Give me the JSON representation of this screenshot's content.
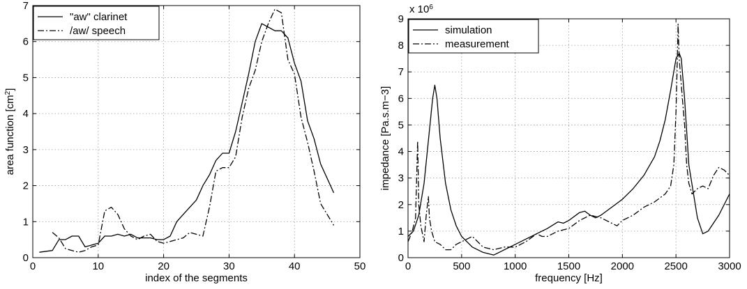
{
  "chart_data": [
    {
      "type": "line",
      "xlabel": "index of the segments",
      "ylabel": "area function [cm",
      "ylabel_sup": "2",
      "ylabel_close": "]",
      "xlim": [
        0,
        50
      ],
      "ylim": [
        0,
        7
      ],
      "xticks": [
        0,
        10,
        20,
        30,
        40,
        50
      ],
      "yticks": [
        0,
        1,
        2,
        3,
        4,
        5,
        6,
        7
      ],
      "grid": true,
      "legend_position": "top-left",
      "series": [
        {
          "name": "\"aw\" clarinet",
          "style": "solid",
          "x": [
            1,
            3,
            4,
            5,
            6,
            7,
            8,
            9,
            10,
            11,
            12,
            13,
            14,
            15,
            16,
            17,
            18,
            19,
            20,
            21,
            22,
            23,
            24,
            25,
            26,
            27,
            28,
            29,
            30,
            31,
            32,
            33,
            34,
            35,
            36,
            37,
            38,
            39,
            40,
            41,
            42,
            43,
            44,
            45,
            46
          ],
          "y": [
            0.15,
            0.2,
            0.5,
            0.5,
            0.6,
            0.6,
            0.3,
            0.35,
            0.4,
            0.6,
            0.6,
            0.65,
            0.6,
            0.65,
            0.55,
            0.55,
            0.55,
            0.5,
            0.5,
            0.6,
            1.0,
            1.2,
            1.4,
            1.6,
            2.0,
            2.3,
            2.7,
            2.9,
            2.9,
            3.5,
            4.3,
            5.1,
            6.0,
            6.5,
            6.4,
            6.3,
            6.3,
            6.1,
            5.4,
            4.9,
            3.8,
            3.3,
            2.6,
            2.2,
            1.8
          ]
        },
        {
          "name": "/aw/ speech",
          "style": "dashdot",
          "x": [
            3,
            4,
            5,
            6,
            7,
            8,
            9,
            10,
            11,
            12,
            13,
            14,
            15,
            16,
            17,
            18,
            19,
            20,
            21,
            22,
            23,
            24,
            25,
            26,
            27,
            28,
            29,
            30,
            31,
            32,
            33,
            34,
            35,
            36,
            37,
            38,
            39,
            40,
            41,
            42,
            43,
            44,
            45,
            46
          ],
          "y": [
            0.7,
            0.55,
            0.25,
            0.2,
            0.15,
            0.2,
            0.3,
            0.35,
            1.3,
            1.4,
            1.2,
            0.8,
            0.6,
            0.5,
            0.6,
            0.65,
            0.45,
            0.4,
            0.45,
            0.5,
            0.55,
            0.7,
            0.65,
            0.6,
            1.4,
            2.4,
            2.5,
            2.5,
            2.8,
            3.9,
            4.7,
            5.2,
            6.0,
            6.5,
            6.9,
            6.8,
            5.5,
            5.1,
            3.9,
            3.2,
            2.4,
            1.5,
            1.2,
            0.9
          ]
        }
      ]
    },
    {
      "type": "line",
      "xlabel": "frequency [Hz]",
      "ylabel": "impedance [Pa.s.m−3]",
      "scale_note_base": "x 10",
      "scale_note_exp": "6",
      "xlim": [
        0,
        3000
      ],
      "ylim": [
        0,
        9
      ],
      "xticks": [
        0,
        500,
        1000,
        1500,
        2000,
        2500,
        3000
      ],
      "yticks": [
        0,
        1,
        2,
        3,
        4,
        5,
        6,
        7,
        8,
        9
      ],
      "grid": true,
      "legend_position": "top-left",
      "series": [
        {
          "name": "simulation",
          "style": "solid",
          "x": [
            0,
            50,
            100,
            150,
            200,
            230,
            250,
            270,
            300,
            350,
            400,
            450,
            500,
            600,
            700,
            800,
            850,
            900,
            1000,
            1100,
            1200,
            1300,
            1400,
            1450,
            1500,
            1600,
            1650,
            1700,
            1750,
            1800,
            1900,
            2000,
            2100,
            2200,
            2300,
            2350,
            2400,
            2450,
            2500,
            2530,
            2550,
            2580,
            2620,
            2700,
            2750,
            2800,
            2900,
            3000
          ],
          "y": [
            0.8,
            1.0,
            1.6,
            2.8,
            4.8,
            6.0,
            6.5,
            6.0,
            4.5,
            2.8,
            1.8,
            1.2,
            0.8,
            0.4,
            0.2,
            0.1,
            0.2,
            0.3,
            0.5,
            0.7,
            0.9,
            1.1,
            1.35,
            1.3,
            1.4,
            1.7,
            1.75,
            1.6,
            1.5,
            1.6,
            1.9,
            2.2,
            2.6,
            3.1,
            3.8,
            4.4,
            5.2,
            6.3,
            7.5,
            7.7,
            7.5,
            6.0,
            3.5,
            1.5,
            0.9,
            1.0,
            1.6,
            2.4
          ]
        },
        {
          "name": "measurement",
          "style": "dashdot",
          "x": [
            0,
            40,
            70,
            90,
            100,
            120,
            150,
            170,
            190,
            200,
            220,
            250,
            300,
            350,
            400,
            450,
            500,
            550,
            600,
            700,
            800,
            900,
            1000,
            1100,
            1200,
            1250,
            1300,
            1400,
            1500,
            1600,
            1700,
            1800,
            1900,
            1950,
            2000,
            2100,
            2200,
            2300,
            2400,
            2450,
            2480,
            2500,
            2510,
            2520,
            2530,
            2550,
            2580,
            2600,
            2620,
            2650,
            2700,
            2750,
            2800,
            2850,
            2900,
            2950,
            3000
          ],
          "y": [
            0.6,
            1.0,
            1.5,
            4.4,
            2.0,
            1.2,
            0.6,
            1.6,
            2.3,
            1.5,
            1.0,
            0.6,
            0.5,
            0.3,
            0.3,
            0.5,
            0.6,
            0.7,
            0.8,
            0.4,
            0.3,
            0.4,
            0.4,
            0.6,
            0.9,
            0.8,
            0.8,
            1.0,
            1.1,
            1.4,
            1.6,
            1.5,
            1.3,
            1.2,
            1.4,
            1.6,
            1.9,
            2.1,
            2.4,
            2.7,
            3.5,
            5.5,
            7.0,
            8.8,
            7.5,
            6.5,
            5.0,
            3.5,
            2.8,
            2.4,
            2.6,
            2.7,
            2.6,
            3.1,
            3.4,
            3.3,
            3.1
          ]
        }
      ]
    }
  ]
}
